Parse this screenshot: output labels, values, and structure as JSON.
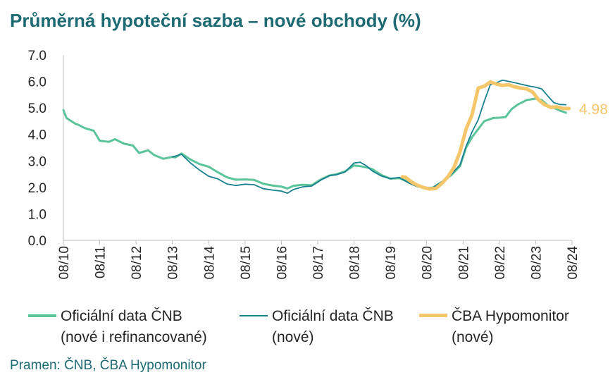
{
  "title": "Průměrná hypoteční sazba – nové obchody (%)",
  "source": "Pramen: ČNB, ČBA Hypomonitor",
  "colors": {
    "cnb_all": "#5cc49a",
    "cnb_new": "#19808f",
    "cba": "#f6c66b",
    "title": "#1d6a72",
    "axis": "#bfbfbf",
    "text": "#262626"
  },
  "chart_data": {
    "type": "line",
    "title": "Průměrná hypoteční sazba – nové obchody (%)",
    "xlabel": "",
    "ylabel": "",
    "ylim": [
      0,
      7
    ],
    "yticks": [
      "0.0",
      "1.0",
      "2.0",
      "3.0",
      "4.0",
      "5.0",
      "6.0",
      "7.0"
    ],
    "xticks": [
      "08/10",
      "08/11",
      "08/12",
      "08/13",
      "08/14",
      "08/15",
      "08/16",
      "08/17",
      "08/18",
      "08/19",
      "08/20",
      "08/21",
      "08/22",
      "08/23",
      "08/24"
    ],
    "grid": false,
    "legend_position": "bottom",
    "end_label": "4.98",
    "series": [
      {
        "name_line1": "Oficiální data ČNB",
        "name_line2": "(nové i refinancované)",
        "color": "#5cc49a",
        "x": [
          "2010-08",
          "2010-09",
          "2010-12",
          "2011-01",
          "2011-03",
          "2011-06",
          "2011-08",
          "2011-11",
          "2012-01",
          "2012-04",
          "2012-07",
          "2012-09",
          "2012-12",
          "2013-02",
          "2013-05",
          "2013-08",
          "2013-09",
          "2013-11",
          "2014-02",
          "2014-05",
          "2014-08",
          "2014-11",
          "2015-02",
          "2015-05",
          "2015-08",
          "2015-11",
          "2016-02",
          "2016-05",
          "2016-08",
          "2016-10",
          "2016-12",
          "2017-03",
          "2017-06",
          "2017-09",
          "2017-12",
          "2018-02",
          "2018-05",
          "2018-08",
          "2018-10",
          "2018-12",
          "2019-02",
          "2019-05",
          "2019-08",
          "2019-11",
          "2020-02",
          "2020-05",
          "2020-08",
          "2020-10",
          "2021-01",
          "2021-04",
          "2021-07",
          "2021-09",
          "2021-11",
          "2022-01",
          "2022-03",
          "2022-06",
          "2022-08",
          "2022-10",
          "2022-12",
          "2023-02",
          "2023-05",
          "2023-08",
          "2023-10",
          "2023-12",
          "2024-02",
          "2024-04",
          "2024-06"
        ],
        "values": [
          4.92,
          4.62,
          4.4,
          4.36,
          4.24,
          4.14,
          3.76,
          3.72,
          3.82,
          3.65,
          3.58,
          3.3,
          3.4,
          3.22,
          3.08,
          3.15,
          3.13,
          3.28,
          3.05,
          2.88,
          2.78,
          2.57,
          2.38,
          2.29,
          2.3,
          2.28,
          2.14,
          2.07,
          2.03,
          1.96,
          2.06,
          2.1,
          2.08,
          2.3,
          2.45,
          2.49,
          2.6,
          2.83,
          2.8,
          2.76,
          2.69,
          2.47,
          2.33,
          2.35,
          2.2,
          2.05,
          1.98,
          1.99,
          2.2,
          2.45,
          2.8,
          3.5,
          3.9,
          4.2,
          4.5,
          4.62,
          4.63,
          4.65,
          4.95,
          5.12,
          5.3,
          5.35,
          5.3,
          5.1,
          5.0,
          4.9,
          4.82
        ]
      },
      {
        "name_line1": "Oficiální data ČNB",
        "name_line2": "(nové)",
        "color": "#19808f",
        "x": [
          "2013-08",
          "2013-11",
          "2014-02",
          "2014-05",
          "2014-08",
          "2014-11",
          "2015-02",
          "2015-05",
          "2015-08",
          "2015-11",
          "2016-02",
          "2016-05",
          "2016-08",
          "2016-10",
          "2016-12",
          "2017-03",
          "2017-06",
          "2017-09",
          "2017-12",
          "2018-02",
          "2018-05",
          "2018-08",
          "2018-10",
          "2018-12",
          "2019-02",
          "2019-05",
          "2019-08",
          "2019-11",
          "2020-02",
          "2020-05",
          "2020-08",
          "2020-10",
          "2021-01",
          "2021-04",
          "2021-07",
          "2021-09",
          "2021-11",
          "2022-01",
          "2022-03",
          "2022-05",
          "2022-07",
          "2022-09",
          "2022-12",
          "2023-03",
          "2023-06",
          "2023-08",
          "2023-10",
          "2023-12",
          "2024-02",
          "2024-04",
          "2024-06"
        ],
        "values": [
          3.15,
          3.25,
          2.92,
          2.65,
          2.42,
          2.32,
          2.13,
          2.07,
          2.12,
          2.1,
          1.95,
          1.9,
          1.86,
          1.78,
          1.92,
          2.02,
          2.05,
          2.27,
          2.45,
          2.47,
          2.58,
          2.92,
          2.95,
          2.82,
          2.62,
          2.43,
          2.33,
          2.38,
          2.17,
          2.02,
          1.96,
          1.98,
          2.22,
          2.48,
          2.85,
          3.55,
          4.1,
          4.55,
          5.25,
          5.88,
          5.95,
          6.05,
          5.98,
          5.9,
          5.82,
          5.78,
          5.72,
          5.45,
          5.2,
          5.13,
          5.12
        ]
      },
      {
        "name_line1": "ČBA Hypomonitor",
        "name_line2": "(nové)",
        "color": "#f6c66b",
        "x": [
          "2019-12",
          "2020-01",
          "2020-03",
          "2020-05",
          "2020-07",
          "2020-09",
          "2020-11",
          "2021-01",
          "2021-03",
          "2021-05",
          "2021-07",
          "2021-09",
          "2021-11",
          "2022-01",
          "2022-03",
          "2022-05",
          "2022-07",
          "2022-09",
          "2022-11",
          "2023-01",
          "2023-03",
          "2023-05",
          "2023-07",
          "2023-09",
          "2023-11",
          "2024-01",
          "2024-03",
          "2024-05",
          "2024-07"
        ],
        "values": [
          2.4,
          2.38,
          2.2,
          2.08,
          1.99,
          1.94,
          1.96,
          2.15,
          2.4,
          2.75,
          3.35,
          4.2,
          4.75,
          5.75,
          5.82,
          5.98,
          5.9,
          5.85,
          5.88,
          5.8,
          5.75,
          5.72,
          5.6,
          5.3,
          5.12,
          5.02,
          5.04,
          4.98,
          4.98
        ]
      }
    ]
  }
}
